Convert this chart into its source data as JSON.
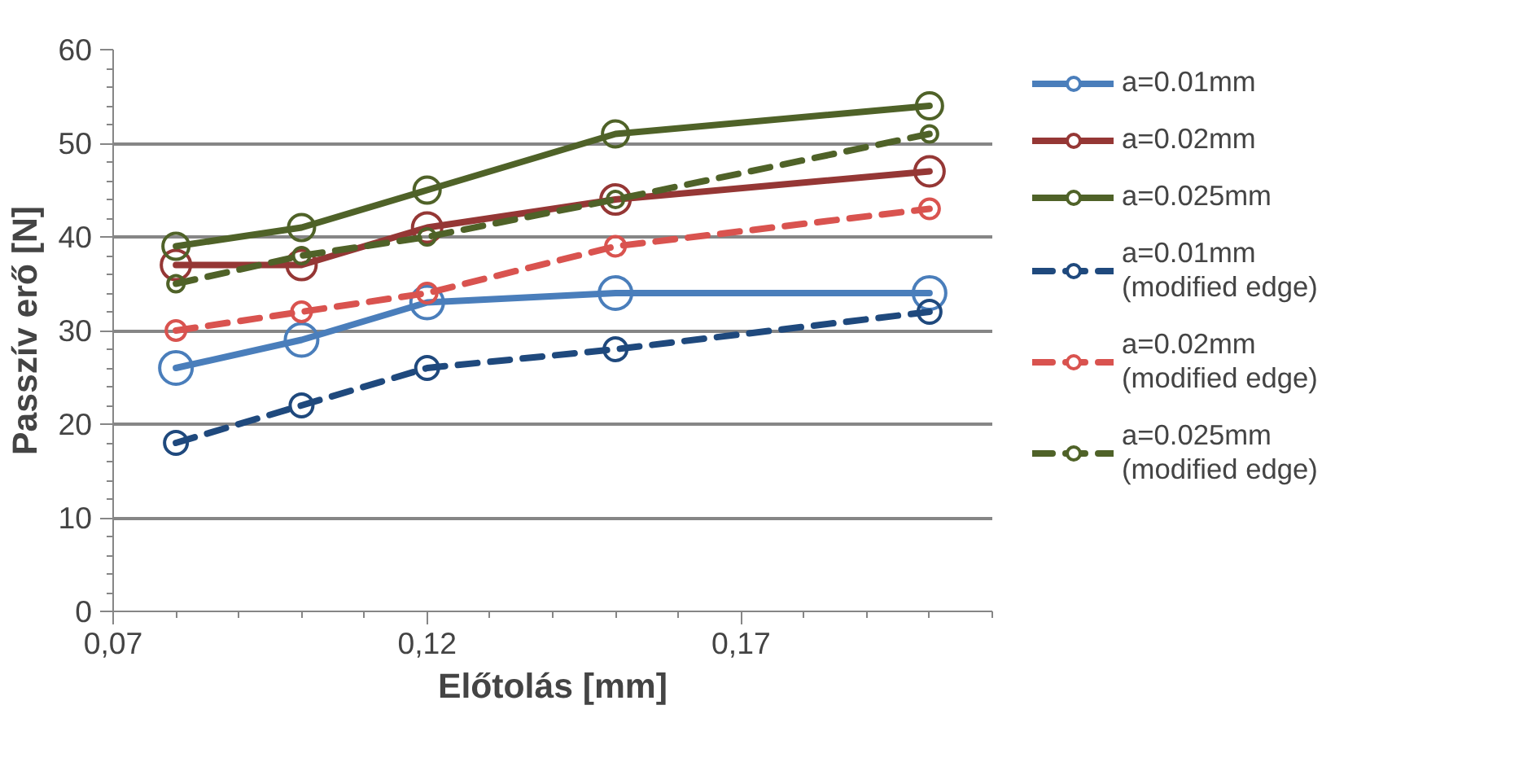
{
  "chart_data": {
    "type": "line",
    "xlabel": "Előtolás [mm]",
    "ylabel": "Passzív erő [N]",
    "x": [
      0.08,
      0.1,
      0.12,
      0.15,
      0.2
    ],
    "xlim": [
      0.07,
      0.21
    ],
    "xticks": [
      {
        "value": 0.07,
        "label": "0,07"
      },
      {
        "value": 0.12,
        "label": "0,12"
      },
      {
        "value": 0.17,
        "label": "0,17"
      }
    ],
    "ylim": [
      0,
      60
    ],
    "yticks": [
      0,
      10,
      20,
      30,
      40,
      50,
      60
    ],
    "grid": "y",
    "legend": "right",
    "marker": "circle",
    "series": [
      {
        "name": "a=0.01mm",
        "color": "#4a7ebb",
        "line_style": "solid",
        "values": [
          26,
          29,
          33,
          34,
          34
        ]
      },
      {
        "name": "a=0.02mm",
        "color": "#953735",
        "line_style": "solid",
        "values": [
          37,
          37,
          41,
          44,
          47
        ]
      },
      {
        "name": "a=0.025mm",
        "color": "#4f6228",
        "line_style": "solid",
        "values": [
          39,
          41,
          45,
          51,
          54
        ]
      },
      {
        "name": "a=0.01mm\n(modified edge)",
        "color": "#1f497d",
        "line_style": "dashed",
        "values": [
          18,
          22,
          26,
          28,
          32
        ]
      },
      {
        "name": "a=0.02mm\n(modified edge)",
        "color": "#d9534f",
        "line_style": "dashed",
        "values": [
          30,
          32,
          34,
          39,
          43
        ]
      },
      {
        "name": "a=0.025mm\n(modified edge)",
        "color": "#4f6228",
        "line_style": "dashed",
        "values": [
          35,
          38,
          40,
          44,
          51
        ]
      }
    ]
  }
}
